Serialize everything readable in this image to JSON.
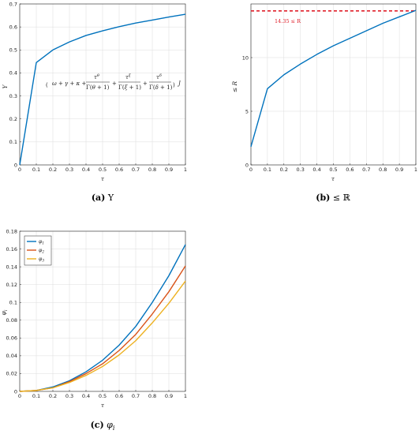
{
  "chart_data": [
    {
      "id": "a",
      "type": "line",
      "caption_tag": "(a)",
      "caption_text": "Υ",
      "xlabel": "τ",
      "ylabel": "Υ",
      "xlim": [
        0,
        1
      ],
      "ylim": [
        0,
        0.7
      ],
      "xticks": [
        "0",
        "0.1",
        "0.2",
        "0.3",
        "0.4",
        "0.5",
        "0.6",
        "0.7",
        "0.8",
        "0.9",
        "1"
      ],
      "yticks": [
        "0",
        "0.1",
        "0.2",
        "0.3",
        "0.4",
        "0.5",
        "0.6",
        "0.7"
      ],
      "grid": true,
      "annotation": "(ω + γ + κ + τ^θ/Γ(θ+1) + τ^ξ/Γ(ξ+1) + τ^δ/Γ(δ+1)) J",
      "series": [
        {
          "color": "#0072bd",
          "x": [
            0,
            0.1,
            0.2,
            0.3,
            0.4,
            0.5,
            0.6,
            0.7,
            0.8,
            0.9,
            1
          ],
          "y": [
            0,
            0.445,
            0.5,
            0.535,
            0.563,
            0.583,
            0.601,
            0.617,
            0.63,
            0.643,
            0.655
          ]
        }
      ]
    },
    {
      "id": "b",
      "type": "line",
      "caption_tag": "(b)",
      "caption_text": "≤ ℝ",
      "xlabel": "τ",
      "ylabel": "≤ R",
      "xlim": [
        0,
        1
      ],
      "ylim": [
        0,
        15
      ],
      "xticks": [
        "0",
        "0.1",
        "0.2",
        "0.3",
        "0.4",
        "0.5",
        "0.6",
        "0.7",
        "0.8",
        "0.9",
        "1"
      ],
      "yticks": [
        "0",
        "5",
        "10"
      ],
      "ytick_values": [
        0,
        5,
        10
      ],
      "grid": true,
      "reference_line": {
        "y": 14.35,
        "color": "#e0202b",
        "label": "14.35 ≤ R"
      },
      "series": [
        {
          "color": "#0072bd",
          "x": [
            0,
            0.1,
            0.2,
            0.3,
            0.4,
            0.5,
            0.6,
            0.7,
            0.8,
            0.9,
            1
          ],
          "y": [
            1.7,
            7.1,
            8.4,
            9.4,
            10.3,
            11.1,
            11.8,
            12.5,
            13.2,
            13.8,
            14.4
          ]
        }
      ]
    },
    {
      "id": "c",
      "type": "line",
      "caption_tag": "(c)",
      "caption_text": "φ",
      "caption_sub": "i",
      "xlabel": "τ",
      "ylabel": "φ",
      "ylabel_sub": "i",
      "xlim": [
        0,
        1
      ],
      "ylim": [
        0,
        0.18
      ],
      "xticks": [
        "0",
        "0.1",
        "0.2",
        "0.3",
        "0.4",
        "0.5",
        "0.6",
        "0.7",
        "0.8",
        "0.9",
        "1"
      ],
      "yticks": [
        "0",
        "0.02",
        "0.04",
        "0.06",
        "0.08",
        "0.1",
        "0.12",
        "0.14",
        "0.16",
        "0.18"
      ],
      "grid": true,
      "legend_position": "top-left",
      "series": [
        {
          "name": "φ",
          "name_sub": "1",
          "color": "#0072bd",
          "x": [
            0,
            0.1,
            0.2,
            0.3,
            0.4,
            0.5,
            0.6,
            0.7,
            0.8,
            0.9,
            1
          ],
          "y": [
            0,
            0.001,
            0.005,
            0.012,
            0.022,
            0.035,
            0.052,
            0.073,
            0.1,
            0.13,
            0.165
          ]
        },
        {
          "name": "φ",
          "name_sub": "2",
          "color": "#d95319",
          "x": [
            0,
            0.1,
            0.2,
            0.3,
            0.4,
            0.5,
            0.6,
            0.7,
            0.8,
            0.9,
            1
          ],
          "y": [
            0,
            0.001,
            0.004,
            0.011,
            0.02,
            0.031,
            0.046,
            0.064,
            0.087,
            0.112,
            0.141
          ]
        },
        {
          "name": "φ",
          "name_sub": "3",
          "color": "#edb120",
          "x": [
            0,
            0.1,
            0.2,
            0.3,
            0.4,
            0.5,
            0.6,
            0.7,
            0.8,
            0.9,
            1
          ],
          "y": [
            0,
            0.001,
            0.004,
            0.01,
            0.018,
            0.028,
            0.041,
            0.057,
            0.077,
            0.099,
            0.124
          ]
        }
      ]
    }
  ]
}
